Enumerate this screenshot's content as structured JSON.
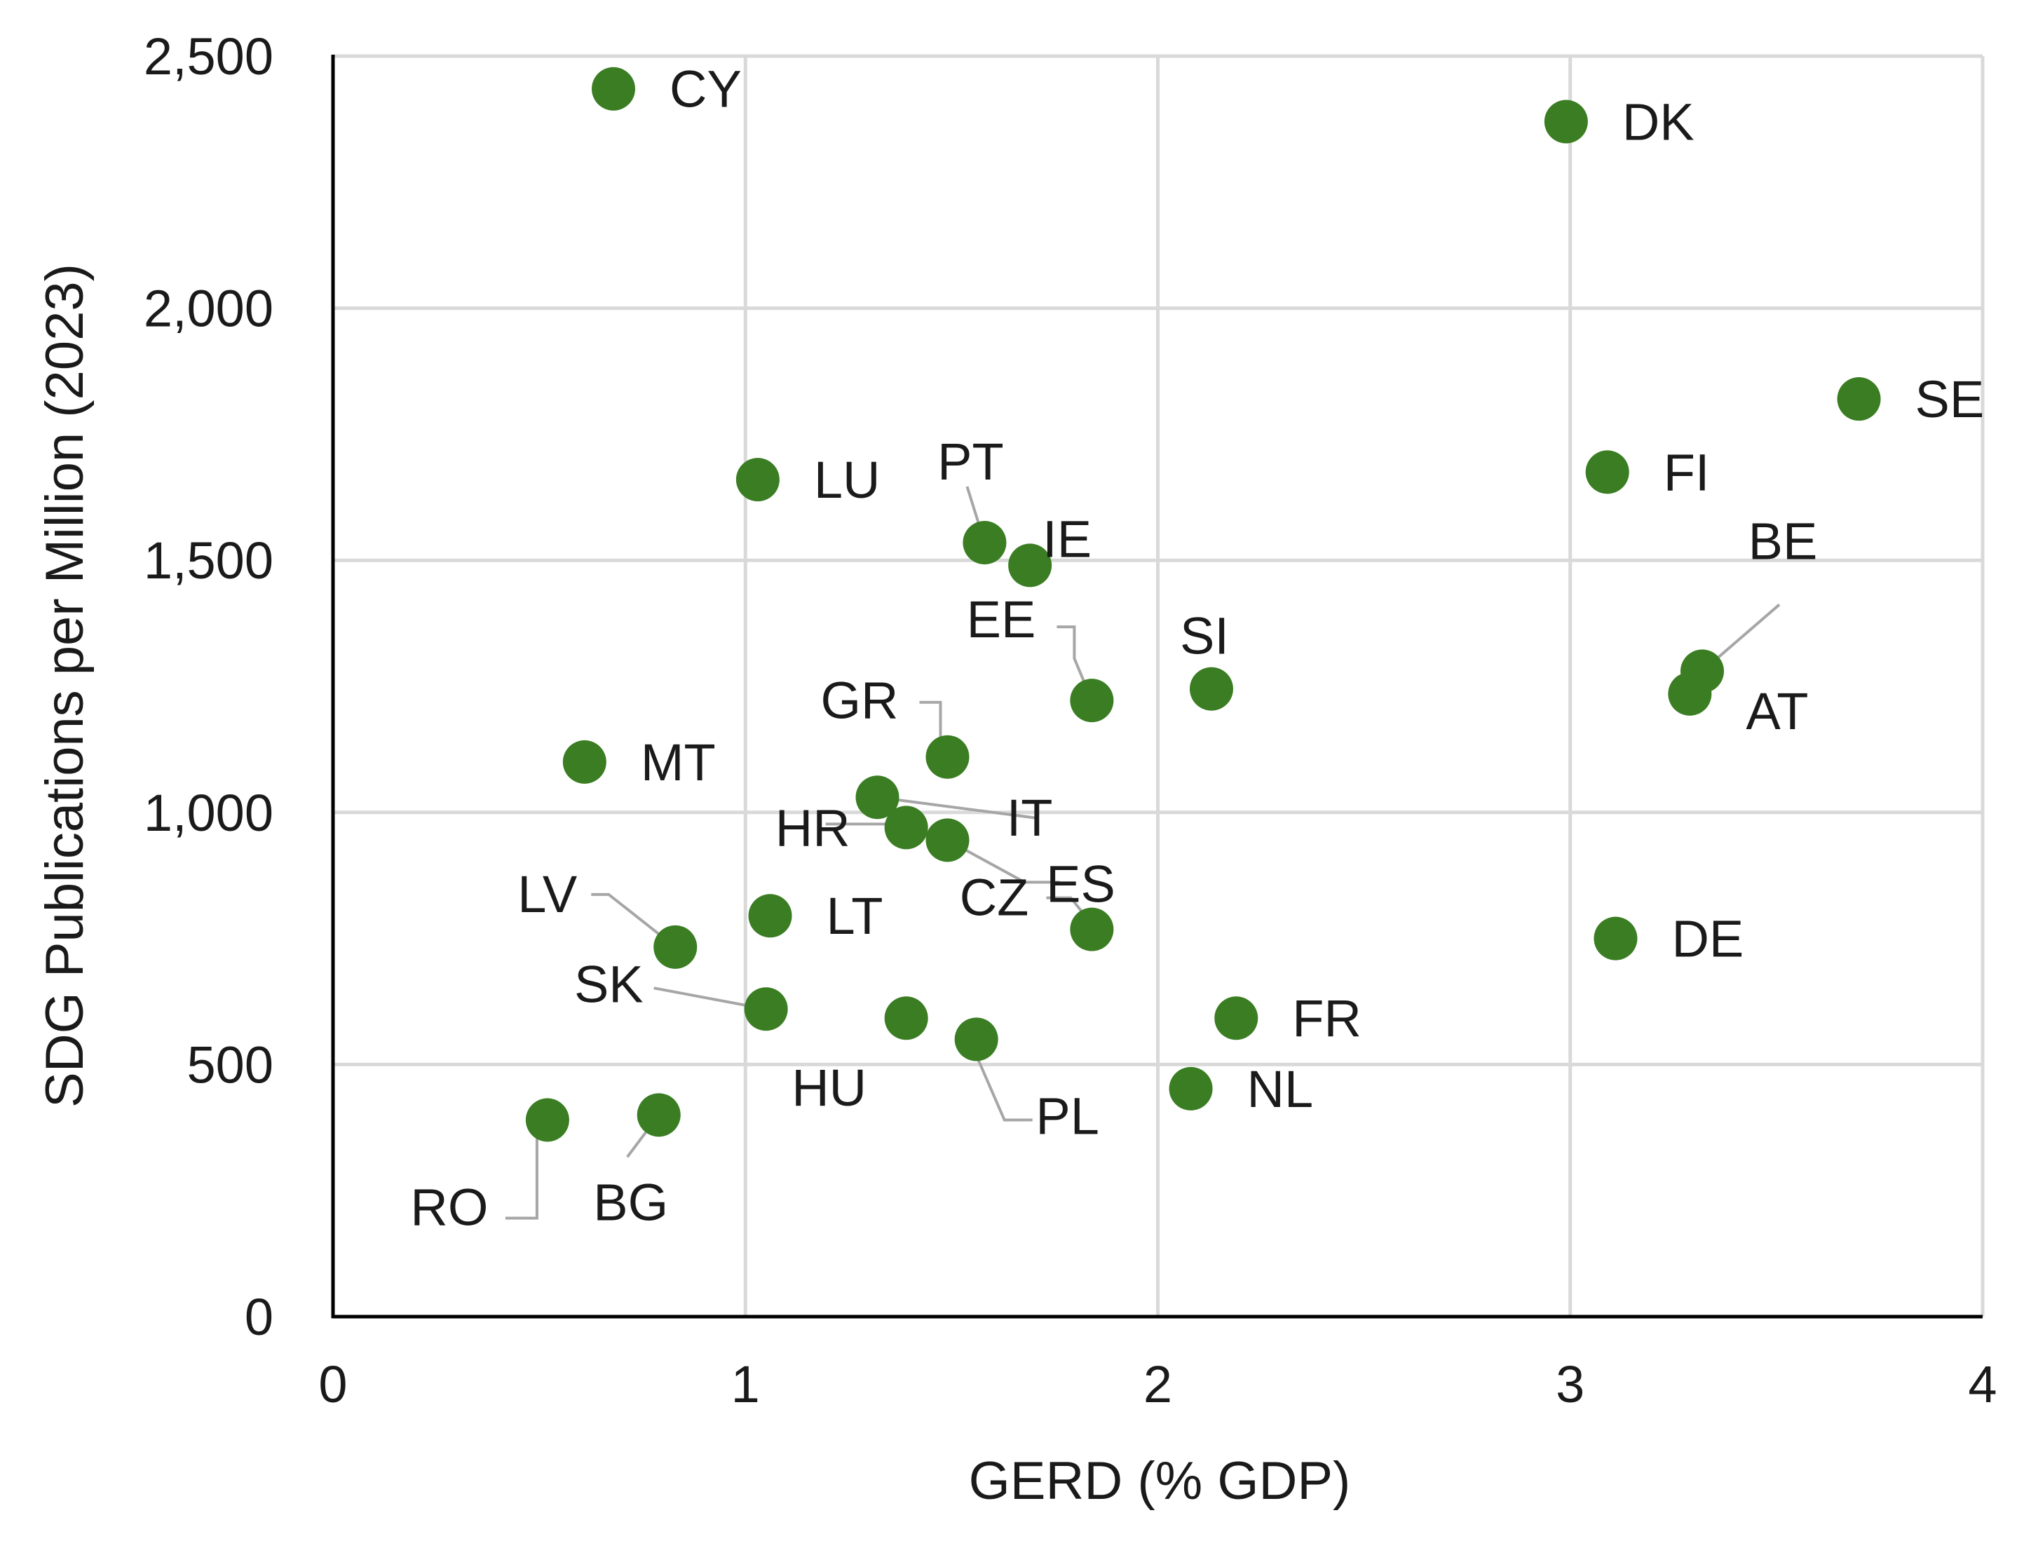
{
  "chart_data": {
    "type": "scatter",
    "title": "",
    "xlabel": "GERD (% GDP)",
    "ylabel": "SDG Publications per Million (2023)",
    "xlim": [
      0,
      4
    ],
    "ylim": [
      0,
      2500
    ],
    "x_ticks": [
      0,
      1,
      2,
      3,
      4
    ],
    "x_tick_labels": [
      "0",
      "1",
      "2",
      "3",
      "4"
    ],
    "y_ticks": [
      0,
      500,
      1000,
      1500,
      2000,
      2500
    ],
    "y_tick_labels": [
      "0",
      "500",
      "1,000",
      "1,500",
      "2,000",
      "2,500"
    ],
    "grid": true,
    "marker_color": "#3a7d22",
    "points": [
      {
        "label": "CY",
        "x": 0.68,
        "y": 2435
      },
      {
        "label": "DK",
        "x": 2.99,
        "y": 2370
      },
      {
        "label": "SE",
        "x": 3.7,
        "y": 1820
      },
      {
        "label": "FI",
        "x": 3.09,
        "y": 1675
      },
      {
        "label": "LU",
        "x": 1.03,
        "y": 1660
      },
      {
        "label": "PT",
        "x": 1.58,
        "y": 1535
      },
      {
        "label": "IE",
        "x": 1.69,
        "y": 1490
      },
      {
        "label": "BE",
        "x": 3.32,
        "y": 1280
      },
      {
        "label": "AT",
        "x": 3.29,
        "y": 1235
      },
      {
        "label": "SI",
        "x": 2.13,
        "y": 1245
      },
      {
        "label": "EE",
        "x": 1.84,
        "y": 1222
      },
      {
        "label": "GR",
        "x": 1.49,
        "y": 1110
      },
      {
        "label": "MT",
        "x": 0.61,
        "y": 1100
      },
      {
        "label": "IT",
        "x": 1.32,
        "y": 1030
      },
      {
        "label": "HR",
        "x": 1.39,
        "y": 970
      },
      {
        "label": "ES",
        "x": 1.49,
        "y": 945
      },
      {
        "label": "LT",
        "x": 1.06,
        "y": 795
      },
      {
        "label": "CZ",
        "x": 1.84,
        "y": 768
      },
      {
        "label": "DE",
        "x": 3.11,
        "y": 750
      },
      {
        "label": "LV",
        "x": 0.83,
        "y": 733
      },
      {
        "label": "SK",
        "x": 1.05,
        "y": 610
      },
      {
        "label": "HU",
        "x": 1.39,
        "y": 592
      },
      {
        "label": "FR",
        "x": 2.19,
        "y": 592
      },
      {
        "label": "PL",
        "x": 1.56,
        "y": 550
      },
      {
        "label": "NL",
        "x": 2.08,
        "y": 452
      },
      {
        "label": "BG",
        "x": 0.79,
        "y": 400
      },
      {
        "label": "RO",
        "x": 0.52,
        "y": 390
      }
    ]
  }
}
